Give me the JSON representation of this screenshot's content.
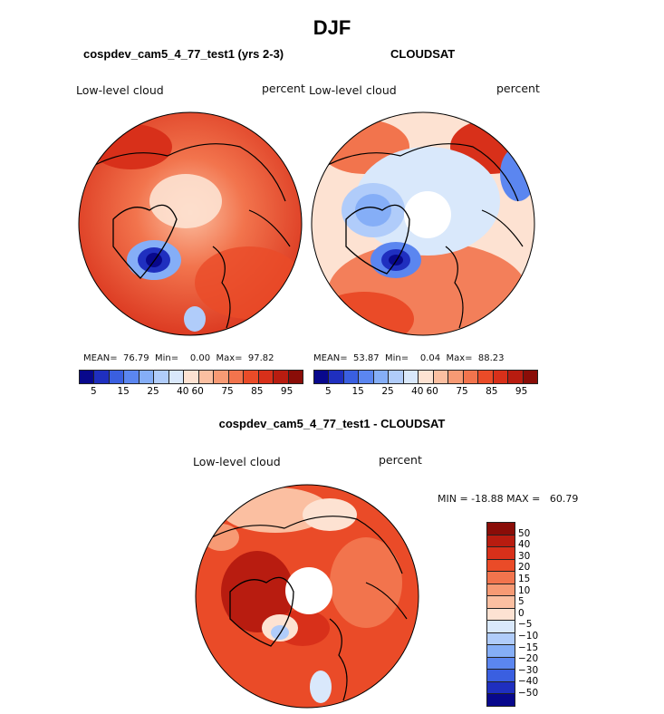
{
  "figure": {
    "season": "DJF",
    "panels": [
      {
        "title": "cospdev_cam5_4_77_test1 (yrs 2-3)",
        "left_label": "Low-level cloud",
        "right_label": "percent",
        "stats": "MEAN=  76.79  Min=    0.00  Max=  97.82"
      },
      {
        "title": "CLOUDSAT",
        "left_label": "Low-level cloud",
        "right_label": "percent",
        "stats": "MEAN=  53.87  Min=    0.04  Max=  88.23"
      },
      {
        "title": "cospdev_cam5_4_77_test1 - CLOUDSAT",
        "left_label": "Low-level cloud",
        "right_label": "percent",
        "stats": "MIN = -18.88 MAX =   60.79"
      }
    ]
  },
  "colors": {
    "abs_scale": [
      "#08088c",
      "#1f2fbf",
      "#3a5fe0",
      "#5b86f0",
      "#85aef7",
      "#b0ccfa",
      "#d9e8fb",
      "#fde2d2",
      "#fbbfa1",
      "#f79a74",
      "#f2744d",
      "#ea4b28",
      "#d8301a",
      "#b81c10",
      "#8a0d08"
    ],
    "diff_scale": [
      "#8a0d08",
      "#b81c10",
      "#d8301a",
      "#ea4b28",
      "#f2744d",
      "#f79a74",
      "#fbbfa1",
      "#fde2d2",
      "#d9e8fb",
      "#b0ccfa",
      "#85aef7",
      "#5b86f0",
      "#3a5fe0",
      "#1f2fbf",
      "#08088c"
    ],
    "coast": "#000000"
  },
  "chart_data": [
    {
      "type": "heatmap",
      "title": "cospdev_cam5_4_77_test1 (yrs 2-3)",
      "variable": "Low-level cloud",
      "units": "percent",
      "projection": "north polar stereographic",
      "mean": 76.79,
      "min": 0.0,
      "max": 97.82,
      "colorbar_ticks": [
        "5",
        "15",
        "25",
        "40",
        "60",
        "75",
        "85",
        "95"
      ]
    },
    {
      "type": "heatmap",
      "title": "CLOUDSAT",
      "variable": "Low-level cloud",
      "units": "percent",
      "projection": "north polar stereographic",
      "mean": 53.87,
      "min": 0.04,
      "max": 88.23,
      "colorbar_ticks": [
        "5",
        "15",
        "25",
        "40",
        "60",
        "75",
        "85",
        "95"
      ]
    },
    {
      "type": "heatmap",
      "title": "cospdev_cam5_4_77_test1 - CLOUDSAT",
      "variable": "Low-level cloud",
      "units": "percent",
      "projection": "north polar stereographic",
      "min": -18.88,
      "max": 60.79,
      "colorbar_ticks": [
        "50",
        "40",
        "30",
        "20",
        "15",
        "10",
        "5",
        "0",
        "−5",
        "−10",
        "−15",
        "−20",
        "−30",
        "−40",
        "−50"
      ]
    }
  ]
}
